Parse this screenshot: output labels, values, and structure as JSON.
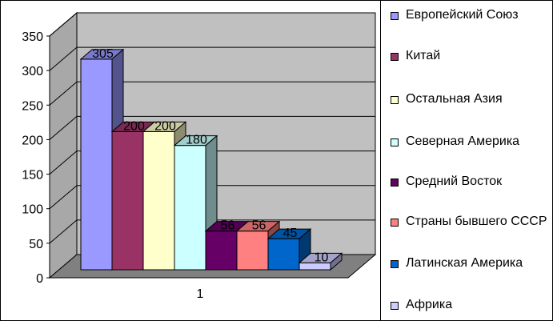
{
  "chart_data": {
    "type": "bar",
    "categories": [
      "1"
    ],
    "series": [
      {
        "name": "Европейский Союз",
        "values": [
          305
        ],
        "color": "#9999ff"
      },
      {
        "name": "Китай",
        "values": [
          200
        ],
        "color": "#993366"
      },
      {
        "name": "Остальная Азия",
        "values": [
          200
        ],
        "color": "#ffffcc"
      },
      {
        "name": "Северная Америка",
        "values": [
          180
        ],
        "color": "#ccffff"
      },
      {
        "name": "Средний Восток",
        "values": [
          56
        ],
        "color": "#660066"
      },
      {
        "name": "Страны бывшего СССР",
        "values": [
          56
        ],
        "color": "#ff8080"
      },
      {
        "name": "Латинская Америка",
        "values": [
          45
        ],
        "color": "#0066cc"
      },
      {
        "name": "Африка",
        "values": [
          10
        ],
        "color": "#ccccff"
      }
    ],
    "ylim": [
      0,
      350
    ],
    "yticks": [
      0,
      50,
      100,
      150,
      200,
      250,
      300,
      350
    ],
    "grid": true,
    "legend": "right",
    "three_d": true,
    "wall_color": "#c0c0c0",
    "floor_color": "#808080"
  }
}
